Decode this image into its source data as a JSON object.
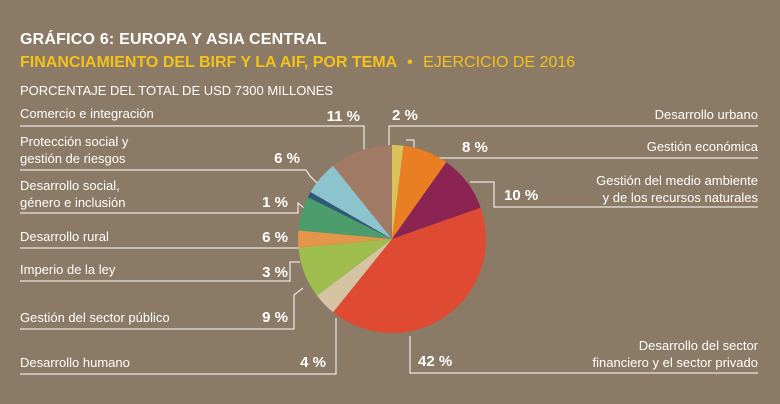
{
  "header": {
    "title": "GRÁFICO 6: EUROPA Y ASIA CENTRAL",
    "subtitle_bold": "FINANCIAMIENTO DEL BIRF Y LA AIF, POR TEMA",
    "bullet": "•",
    "subtitle_rest": "EJERCICIO DE 2016",
    "units": "PORCENTAJE DEL TOTAL DE USD 7300 MILLONES"
  },
  "colors": {
    "background": "#8b7a66",
    "title": "#ffffff",
    "subtitle": "#f2c21b",
    "leader": "#ffffff"
  },
  "chart_data": {
    "type": "pie",
    "start": "12 o'clock, clockwise",
    "slices": [
      {
        "name": "Desarrollo urbano",
        "value": 2,
        "label": "2 %",
        "color": "#d9c25a"
      },
      {
        "name": "Gestión económica",
        "value": 8,
        "label": "8 %",
        "color": "#ea7e22"
      },
      {
        "name": "Gestión del medio ambiente y de los recursos naturales",
        "lines": [
          "Gestión del medio ambiente",
          "y de los recursos naturales"
        ],
        "value": 10,
        "label": "10 %",
        "color": "#8b2452"
      },
      {
        "name": "Desarrollo del sector financiero y el sector privado",
        "lines": [
          "Desarrollo del sector",
          "financiero y el sector privado"
        ],
        "value": 42,
        "label": "42 %",
        "color": "#df4a33"
      },
      {
        "name": "Desarrollo humano",
        "value": 4,
        "label": "4 %",
        "color": "#d6c3a2"
      },
      {
        "name": "Gestión del sector público",
        "value": 9,
        "label": "9 %",
        "color": "#9fbc4e"
      },
      {
        "name": "Imperio de la ley",
        "value": 3,
        "label": "3 %",
        "color": "#e3954a"
      },
      {
        "name": "Desarrollo rural",
        "value": 6,
        "label": "6 %",
        "color": "#4d9c6b"
      },
      {
        "name": "Desarrollo social, género e inclusión",
        "lines": [
          "Desarrollo social,",
          "género e inclusión"
        ],
        "value": 1,
        "label": "1 %",
        "color": "#2c5a78"
      },
      {
        "name": "Protección social y gestión de riesgos",
        "lines": [
          "Protección social y",
          "gestión de riesgos"
        ],
        "value": 6,
        "label": "6 %",
        "color": "#8cc3cc"
      },
      {
        "name": "Comercio e integración",
        "value": 11,
        "label": "11 %",
        "color": "#a07a64"
      }
    ]
  }
}
